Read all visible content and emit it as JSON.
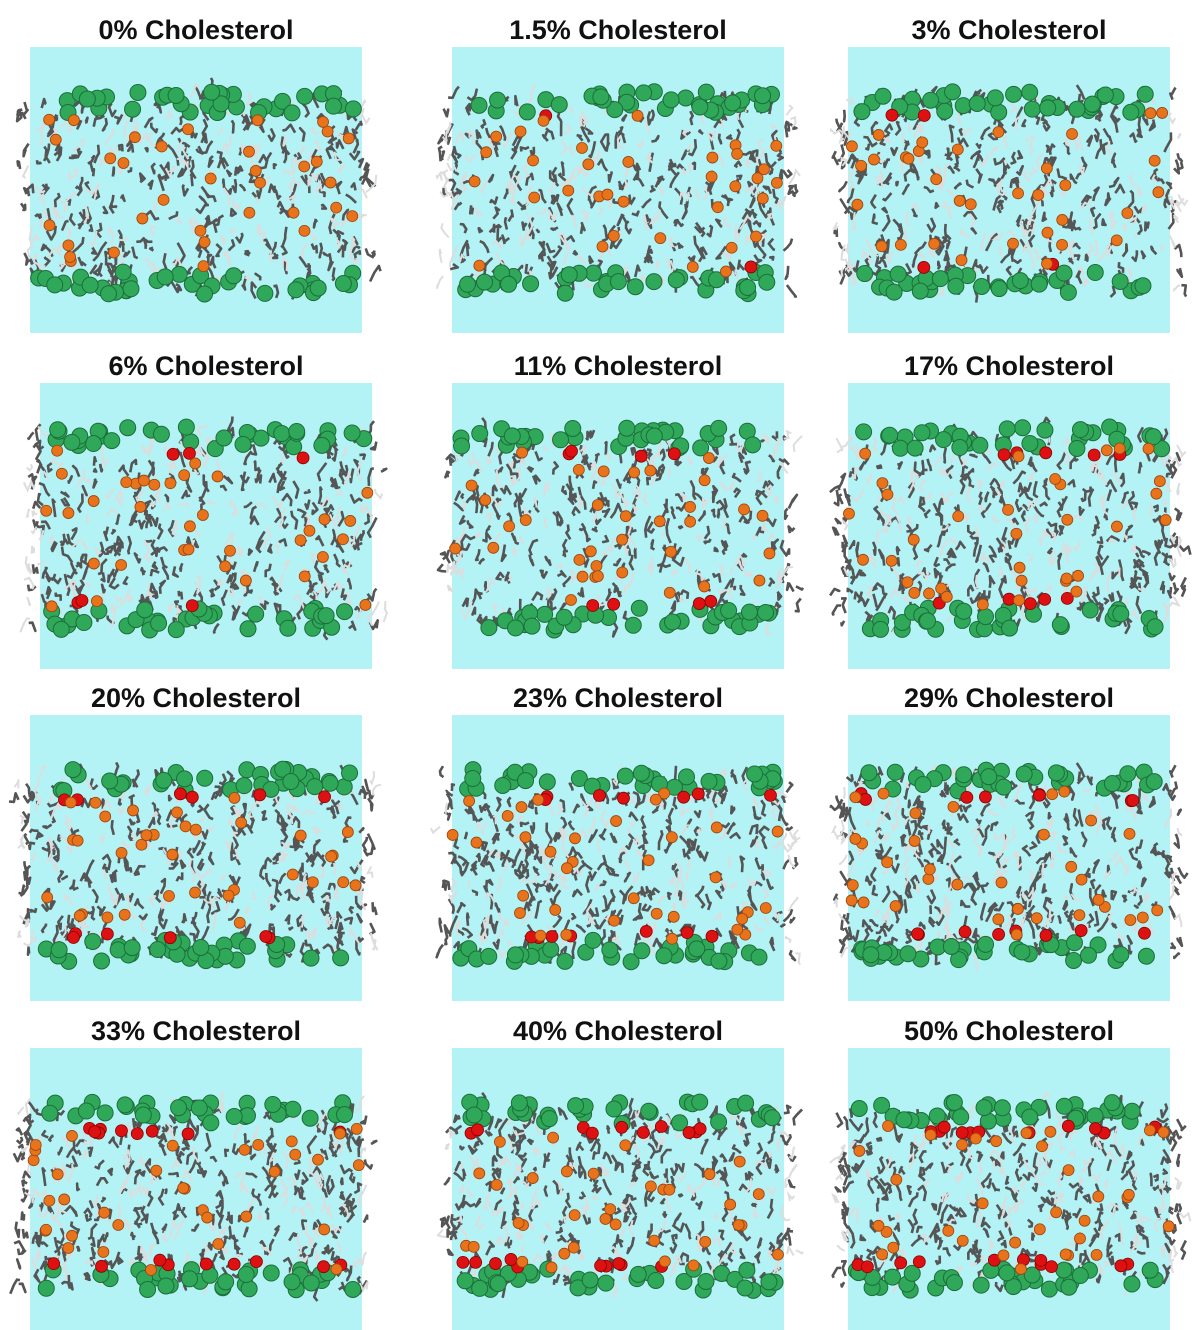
{
  "panels": [
    {
      "title": "0% Cholesterol"
    },
    {
      "title": "1.5% Cholesterol"
    },
    {
      "title": "3% Cholesterol"
    },
    {
      "title": "6% Cholesterol"
    },
    {
      "title": "11% Cholesterol"
    },
    {
      "title": "17% Cholesterol"
    },
    {
      "title": "20% Cholesterol"
    },
    {
      "title": "23% Cholesterol"
    },
    {
      "title": "29% Cholesterol"
    },
    {
      "title": "33% Cholesterol"
    },
    {
      "title": "40% Cholesterol"
    },
    {
      "title": "50% Cholesterol"
    }
  ]
}
